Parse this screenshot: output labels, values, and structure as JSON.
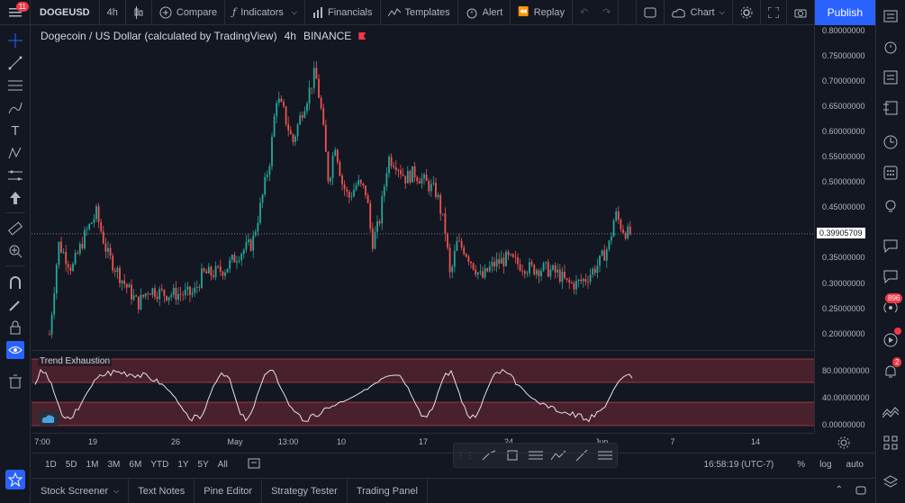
{
  "toolbar": {
    "notifications_count": "11",
    "symbol": "DOGEUSD",
    "interval": "4h",
    "compare_label": "Compare",
    "indicators_label": "Indicators",
    "financials_label": "Financials",
    "templates_label": "Templates",
    "alert_label": "Alert",
    "replay_label": "Replay",
    "layout_label": "Chart",
    "publish_label": "Publish"
  },
  "legend": {
    "title": "Dogecoin / US Dollar (calculated by TradingView)",
    "interval": "4h",
    "exchange": "BINANCE"
  },
  "price_axis": {
    "labels": [
      "0.80000000",
      "0.75000000",
      "0.70000000",
      "0.65000000",
      "0.60000000",
      "0.55000000",
      "0.50000000",
      "0.45000000",
      "0.35000000",
      "0.30000000",
      "0.25000000",
      "0.20000000"
    ],
    "current_price": "0.39905709"
  },
  "indicator": {
    "title": "Trend Exhaustion",
    "labels": [
      "80.00000000",
      "40.00000000",
      "0.00000000"
    ]
  },
  "time_axis": {
    "labels": [
      "7:00",
      "19",
      "26",
      "May",
      "13:00",
      "10",
      "17",
      "24",
      "Jun",
      "7",
      "14"
    ]
  },
  "ranges": [
    "1D",
    "5D",
    "1M",
    "3M",
    "6M",
    "YTD",
    "1Y",
    "5Y",
    "All"
  ],
  "status": {
    "clock": "16:58:19 (UTC-7)",
    "percent": "%",
    "log": "log",
    "auto": "auto"
  },
  "bottom_tabs": [
    "Stock Screener",
    "Text Notes",
    "Pine Editor",
    "Strategy Tester",
    "Trading Panel"
  ],
  "right_badges": {
    "chat_count": "896",
    "alert_count": "2"
  },
  "colors": {
    "background": "#131722",
    "up": "#26a69a",
    "down": "#ef5350",
    "accent": "#2962ff",
    "zone": "#8b2e3a"
  }
}
